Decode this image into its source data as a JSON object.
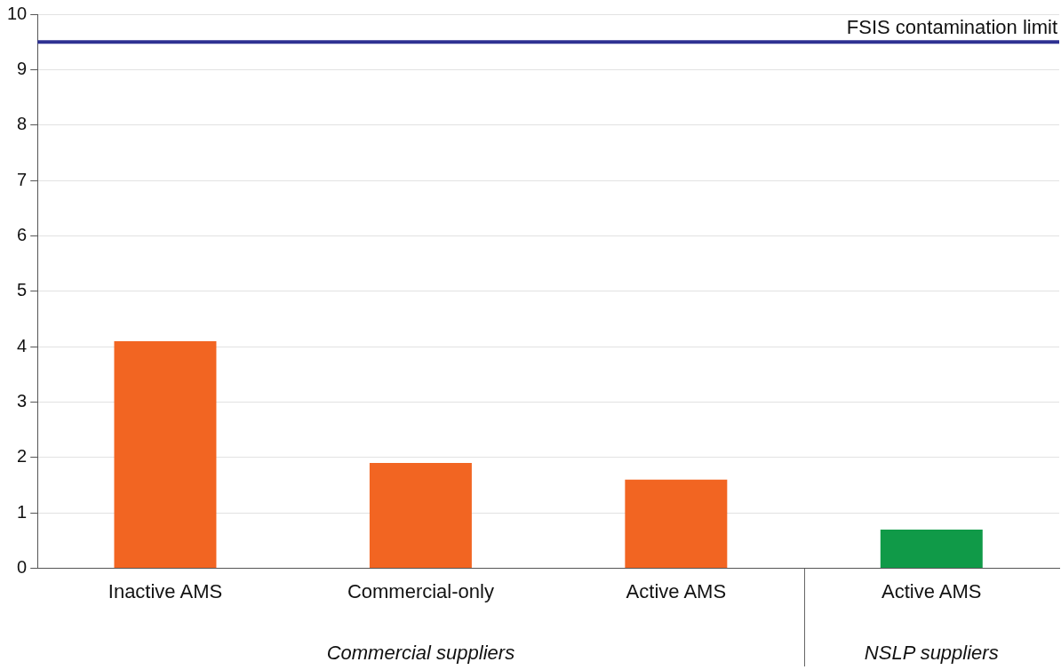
{
  "chart_data": {
    "type": "bar",
    "categories": [
      "Inactive AMS",
      "Commercial-only",
      "Active AMS",
      "Active AMS"
    ],
    "values": [
      4.1,
      1.9,
      1.6,
      0.7
    ],
    "colors": [
      "#f26522",
      "#f26522",
      "#f26522",
      "#109a48"
    ],
    "ylim": [
      0,
      10
    ],
    "yticks": [
      0,
      1,
      2,
      3,
      4,
      5,
      6,
      7,
      8,
      9,
      10
    ],
    "grid": "y",
    "legend": false,
    "ref_lines": [
      {
        "axis": "y",
        "value": 9.5,
        "label": "FSIS contamination limit",
        "color": "#2e3192"
      }
    ],
    "annotations": [
      "Commercial suppliers",
      "NSLP suppliers"
    ]
  }
}
